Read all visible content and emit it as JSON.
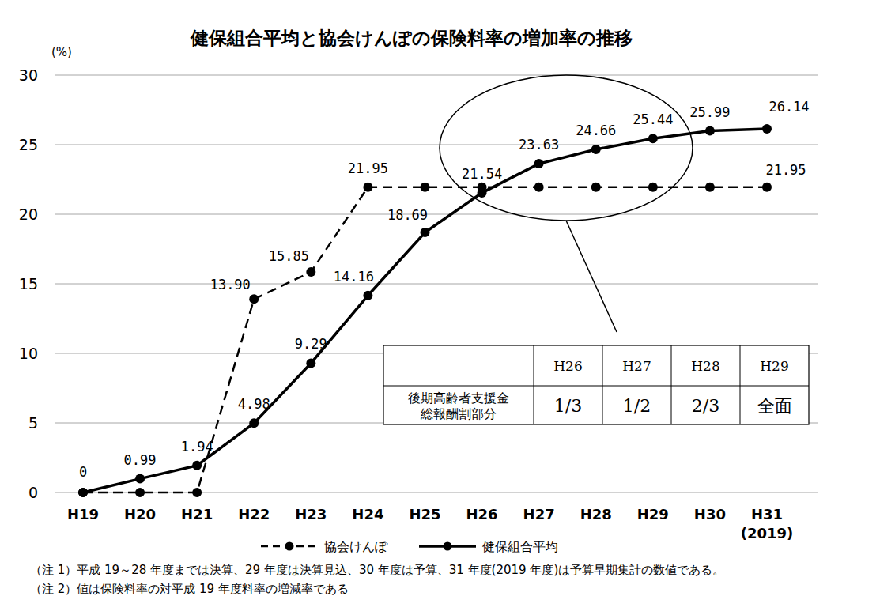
{
  "chart_data": {
    "type": "line",
    "title": "健保組合平均と協会けんぽの保険料率の増加率の推移",
    "y_label": "(%)",
    "categories": [
      "H19",
      "H20",
      "H21",
      "H22",
      "H23",
      "H24",
      "H25",
      "H26",
      "H27",
      "H28",
      "H29",
      "H30",
      "H31\n(2019)"
    ],
    "series": [
      {
        "name": "協会けんぽ",
        "color": "#000000",
        "line_style": "dashed",
        "marker": "circle",
        "values": [
          0,
          0,
          0,
          13.9,
          15.85,
          21.95,
          21.95,
          21.95,
          21.95,
          21.95,
          21.95,
          21.95,
          21.95
        ],
        "value_labels": [
          null,
          null,
          null,
          "13.90",
          "15.85",
          "21.95",
          null,
          null,
          null,
          null,
          null,
          null,
          "21.95"
        ]
      },
      {
        "name": "健保組合平均",
        "color": "#000000",
        "line_style": "solid",
        "marker": "circle",
        "values": [
          0,
          0.99,
          1.94,
          4.98,
          9.29,
          14.16,
          18.69,
          21.54,
          23.63,
          24.66,
          25.44,
          25.99,
          26.14
        ],
        "value_labels": [
          "0",
          "0.99",
          "1.94",
          "4.98",
          "9.29",
          "14.16",
          "18.69",
          "21.54",
          "23.63",
          "24.66",
          "25.44",
          "25.99",
          "26.14"
        ]
      }
    ],
    "ylim": [
      0,
      30
    ],
    "yticks": [
      0,
      5,
      10,
      15,
      20,
      25,
      30
    ],
    "grid": true,
    "legend": "bottom",
    "data_labels": true,
    "inset_table": {
      "columns": [
        "H26",
        "H27",
        "H28",
        "H29"
      ],
      "row_label": "後期高齢者支援金\n総報酬割部分",
      "values": [
        "1/3",
        "1/2",
        "2/3",
        "全面"
      ]
    },
    "notes": [
      "（注 1）平成 19～28 年度までは決算、29 年度は決算見込、30 年度は予算、31 年度(2019 年度)は予算早期集計の数値である。",
      "（注 2）値は保険料率の対平成 19 年度料率の増減率である"
    ]
  }
}
